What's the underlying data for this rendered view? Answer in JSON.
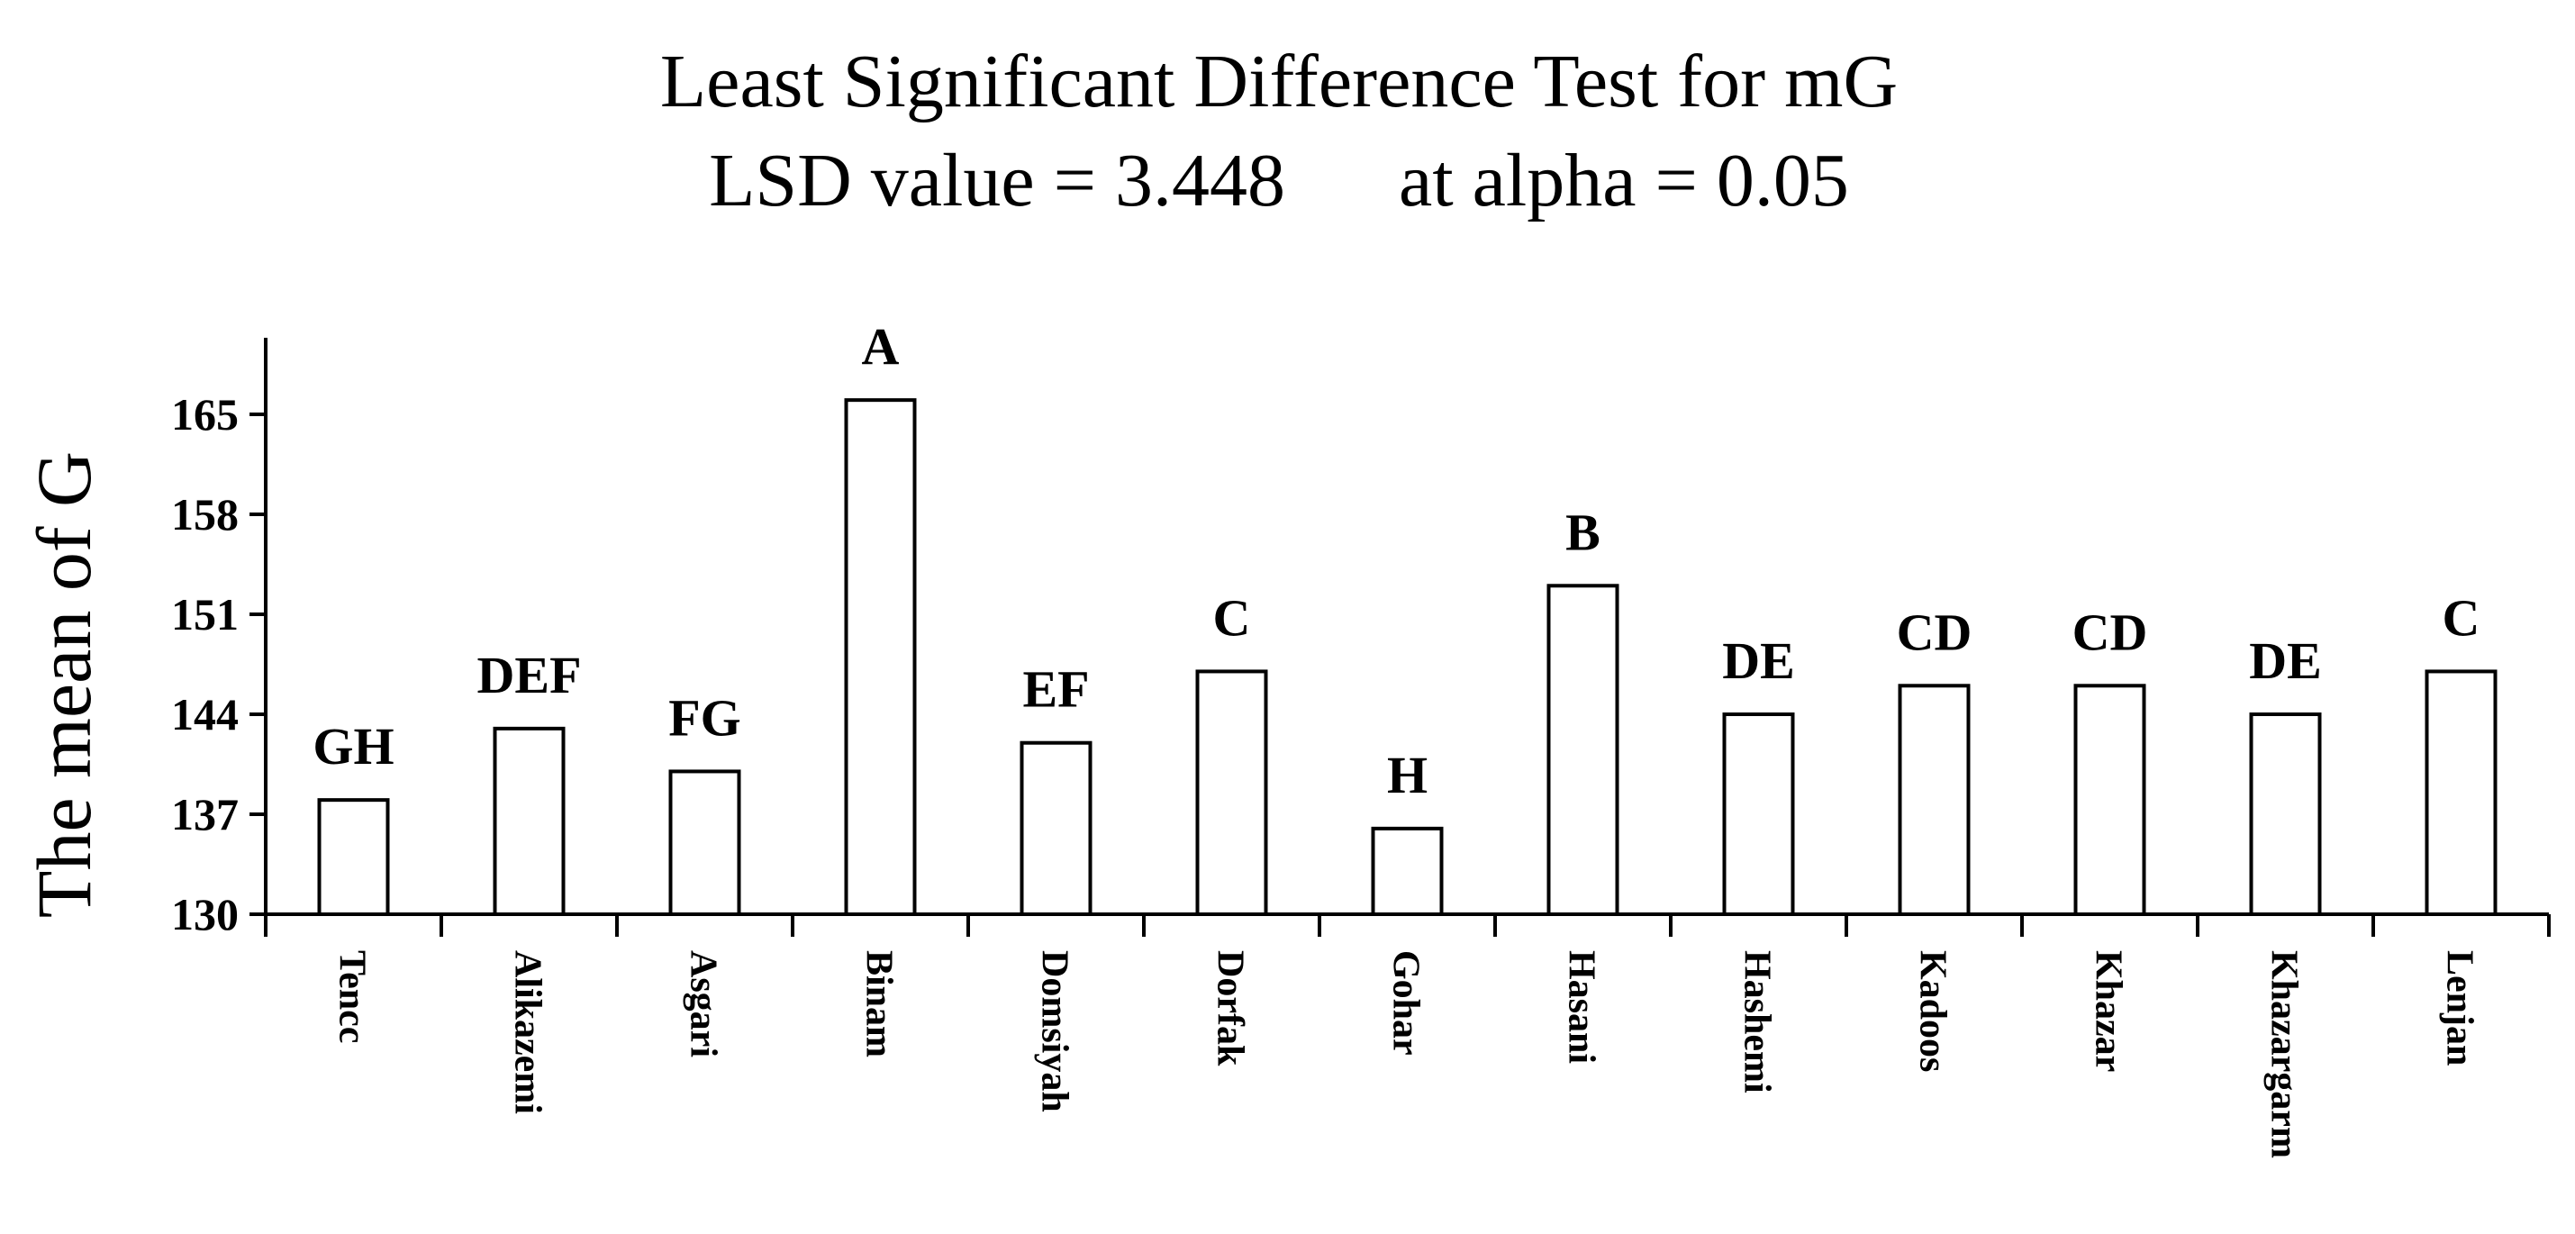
{
  "chart_data": {
    "type": "bar",
    "title": "Least Significant Difference Test for mG",
    "subtitle": "LSD value = 3.448      at alpha = 0.05",
    "xlabel": "",
    "ylabel": "The mean of G",
    "ylim": [
      130,
      170
    ],
    "yticks": [
      130,
      137,
      144,
      151,
      158,
      165
    ],
    "ytick_labels": [
      "130",
      "137",
      "144",
      "151",
      "158",
      "165"
    ],
    "grid": false,
    "categories": [
      "Tencc",
      "Alikazemi",
      "Asgari",
      "Binam",
      "Domsiyah",
      "Dorfak",
      "Gohar",
      "Hasani",
      "Hashemi",
      "Kadoos",
      "Khazar",
      "Khazargarm",
      "Lenjan"
    ],
    "values": [
      138,
      143,
      140,
      166,
      142,
      147,
      136,
      153,
      144,
      146,
      146,
      144,
      147
    ],
    "group_labels": [
      "GH",
      "DEF",
      "FG",
      "A",
      "EF",
      "C",
      "H",
      "B",
      "DE",
      "CD",
      "CD",
      "DE",
      "C"
    ],
    "bar_fill": "#ffffff",
    "bar_stroke": "#000000"
  }
}
